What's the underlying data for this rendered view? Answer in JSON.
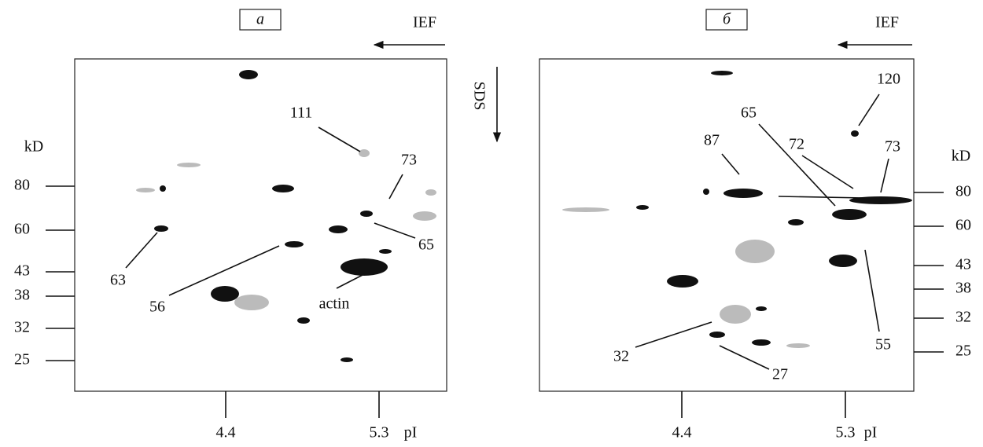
{
  "sds": "SDS",
  "panels": [
    {
      "label": "a",
      "ief": "IEF",
      "unit": "kD",
      "markers": [
        "80",
        "60",
        "43",
        "38",
        "32",
        "25"
      ],
      "pi_ticks": [
        "4.4",
        "5.3"
      ],
      "pi_label": "pI",
      "annotations": [
        "111",
        "73",
        "65",
        "63",
        "56",
        "actin"
      ]
    },
    {
      "label": "б",
      "ief": "IEF",
      "unit": "kD",
      "markers": [
        "80",
        "60",
        "43",
        "38",
        "32",
        "25"
      ],
      "pi_ticks": [
        "4.4",
        "5.3"
      ],
      "pi_label": "pI",
      "annotations": [
        "120",
        "65",
        "72",
        "73",
        "87",
        "55",
        "32",
        "27"
      ]
    }
  ]
}
